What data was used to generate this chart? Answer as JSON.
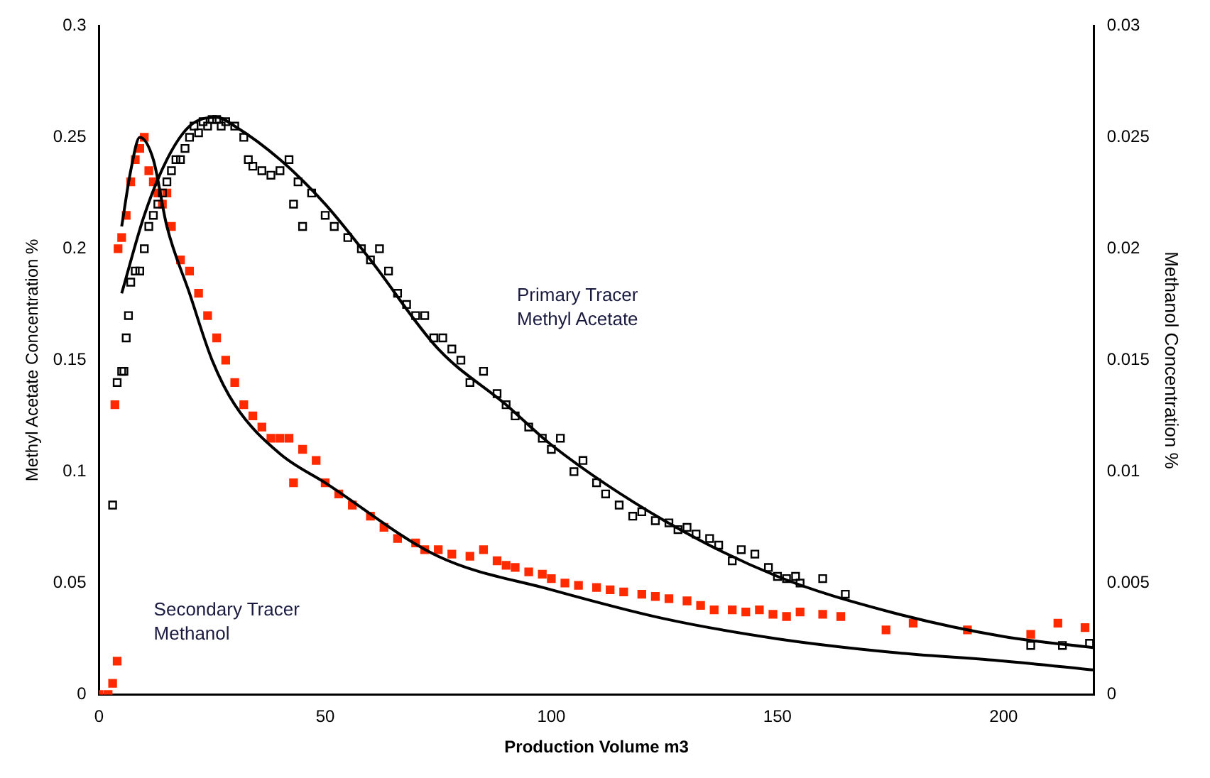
{
  "chart_data": {
    "type": "scatter",
    "xlabel": "Production Volume m3",
    "ylabel": "Methyl Acetate Concentration %",
    "y2label": "Methanol Concentration %",
    "xlim": [
      0,
      220
    ],
    "xticks": [
      0,
      50,
      100,
      150,
      200
    ],
    "ylim": [
      0,
      0.3
    ],
    "yticks": [
      0,
      0.05,
      0.1,
      0.15,
      0.2,
      0.25,
      0.3
    ],
    "y2lim": [
      0,
      0.03
    ],
    "y2ticks": [
      0,
      0.005,
      0.01,
      0.015,
      0.02,
      0.025,
      0.03
    ],
    "grid": false,
    "legend": false,
    "marker": "square",
    "annotations": [
      "Primary Tracer\nMethyl Acetate",
      "Secondary Tracer\nMethanol"
    ],
    "series": [
      {
        "color": "#000000",
        "axis": "y",
        "x": [
          3,
          4,
          5,
          5.5,
          6,
          6.5,
          7,
          8,
          9,
          10,
          11,
          12,
          13,
          14,
          15,
          16,
          17,
          18,
          19,
          20,
          21,
          22,
          23,
          24,
          25,
          26,
          27,
          28,
          30,
          32,
          33,
          34,
          36,
          38,
          40,
          42,
          43,
          44,
          45,
          47,
          50,
          52,
          55,
          58,
          60,
          62,
          64,
          66,
          68,
          70,
          72,
          74,
          76,
          78,
          80,
          82,
          85,
          88,
          90,
          92,
          95,
          98,
          100,
          102,
          105,
          107,
          110,
          112,
          115,
          118,
          120,
          123,
          126,
          128,
          130,
          132,
          135,
          137,
          140,
          142,
          145,
          148,
          150,
          152,
          154,
          155,
          160,
          165,
          206,
          213,
          219
        ],
        "values": [
          0.085,
          0.14,
          0.145,
          0.145,
          0.16,
          0.17,
          0.185,
          0.19,
          0.19,
          0.2,
          0.21,
          0.215,
          0.22,
          0.225,
          0.23,
          0.235,
          0.24,
          0.24,
          0.245,
          0.25,
          0.255,
          0.252,
          0.257,
          0.255,
          0.258,
          0.258,
          0.255,
          0.257,
          0.255,
          0.25,
          0.24,
          0.237,
          0.235,
          0.233,
          0.235,
          0.24,
          0.22,
          0.23,
          0.21,
          0.225,
          0.215,
          0.21,
          0.205,
          0.2,
          0.195,
          0.2,
          0.19,
          0.18,
          0.175,
          0.17,
          0.17,
          0.16,
          0.16,
          0.155,
          0.15,
          0.14,
          0.145,
          0.135,
          0.13,
          0.125,
          0.12,
          0.115,
          0.11,
          0.115,
          0.1,
          0.105,
          0.095,
          0.09,
          0.085,
          0.08,
          0.082,
          0.078,
          0.077,
          0.074,
          0.075,
          0.072,
          0.07,
          0.067,
          0.06,
          0.065,
          0.063,
          0.057,
          0.053,
          0.052,
          0.053,
          0.05,
          0.052,
          0.045,
          0.022,
          0.022,
          0.023
        ]
      },
      {
        "color": "#ff2a00",
        "axis": "y2",
        "x": [
          0,
          2,
          3,
          4,
          3.5,
          4.2,
          5,
          6,
          7,
          8,
          9,
          10,
          11,
          12,
          13,
          14,
          15,
          16,
          18,
          20,
          22,
          24,
          26,
          28,
          30,
          32,
          34,
          36,
          38,
          40,
          42,
          43,
          45,
          48,
          50,
          53,
          56,
          60,
          63,
          66,
          70,
          72,
          75,
          78,
          82,
          85,
          88,
          90,
          92,
          95,
          98,
          100,
          103,
          106,
          110,
          113,
          116,
          120,
          123,
          126,
          130,
          133,
          136,
          140,
          143,
          146,
          149,
          152,
          155,
          160,
          164,
          174,
          180,
          192,
          206,
          212,
          218
        ],
        "values": [
          0,
          0,
          0.0005,
          0.0015,
          0.013,
          0.02,
          0.0205,
          0.0215,
          0.023,
          0.024,
          0.0245,
          0.025,
          0.0235,
          0.023,
          0.0225,
          0.022,
          0.0225,
          0.021,
          0.0195,
          0.019,
          0.018,
          0.017,
          0.016,
          0.015,
          0.014,
          0.013,
          0.0125,
          0.012,
          0.0115,
          0.0115,
          0.0115,
          0.0095,
          0.011,
          0.0105,
          0.0095,
          0.009,
          0.0085,
          0.008,
          0.0075,
          0.007,
          0.0068,
          0.0065,
          0.0065,
          0.0063,
          0.0062,
          0.0065,
          0.006,
          0.0058,
          0.0057,
          0.0055,
          0.0054,
          0.0052,
          0.005,
          0.0049,
          0.0048,
          0.0047,
          0.0046,
          0.0045,
          0.0044,
          0.0043,
          0.0042,
          0.004,
          0.0038,
          0.0038,
          0.0037,
          0.0038,
          0.0036,
          0.0035,
          0.0037,
          0.0036,
          0.0035,
          0.0029,
          0.0032,
          0.0029,
          0.0027,
          0.0032,
          0.003
        ]
      },
      {
        "type": "line",
        "color": "#000000",
        "axis": "y",
        "marker": "none",
        "x": [
          5,
          10,
          15,
          20,
          26,
          30,
          40,
          50,
          60,
          75,
          90,
          100,
          125,
          150,
          175,
          200,
          220
        ],
        "values": [
          0.18,
          0.215,
          0.24,
          0.255,
          0.259,
          0.255,
          0.24,
          0.22,
          0.195,
          0.155,
          0.13,
          0.112,
          0.078,
          0.053,
          0.037,
          0.026,
          0.021
        ]
      },
      {
        "type": "line",
        "color": "#000000",
        "axis": "y2",
        "marker": "none",
        "x": [
          5,
          7,
          9,
          12,
          15,
          20,
          25,
          30,
          40,
          50,
          75,
          100,
          125,
          150,
          175,
          200,
          220
        ],
        "values": [
          0.021,
          0.0235,
          0.025,
          0.024,
          0.021,
          0.018,
          0.015,
          0.013,
          0.0108,
          0.0095,
          0.0062,
          0.0047,
          0.0034,
          0.0025,
          0.0019,
          0.0015,
          0.0011
        ]
      }
    ]
  }
}
